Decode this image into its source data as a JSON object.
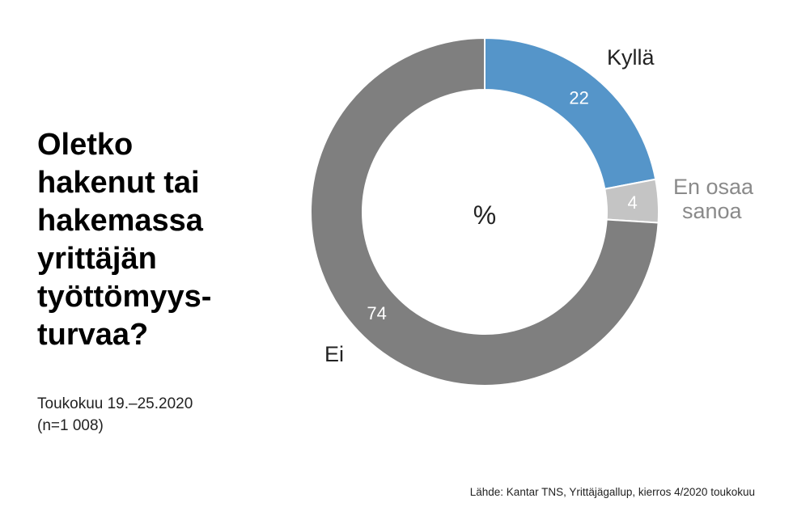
{
  "title": "Oletko\nhakenut tai\nhakemassa\nyrittäjän\ntyöttömyys-\nturvaa?",
  "subtitle_lines": [
    "Toukokuu 19.–25.2020",
    "(n=1 008)"
  ],
  "source": "Lähde: Kantar TNS, Yrittäjägallup, kierros 4/2020 toukokuu",
  "chart_data": {
    "type": "pie",
    "variant": "donut",
    "center_label": "%",
    "slices": [
      {
        "label": "Kyllä",
        "value": 22,
        "color": "#5595c9",
        "value_color": "#ffffff",
        "label_color": "#222222"
      },
      {
        "label": "En osaa sanoa",
        "value": 4,
        "color": "#c4c4c4",
        "value_color": "#ffffff",
        "label_color": "#8a8a8a"
      },
      {
        "label": "Ei",
        "value": 74,
        "color": "#7f7f7f",
        "value_color": "#ffffff",
        "label_color": "#222222"
      }
    ]
  }
}
